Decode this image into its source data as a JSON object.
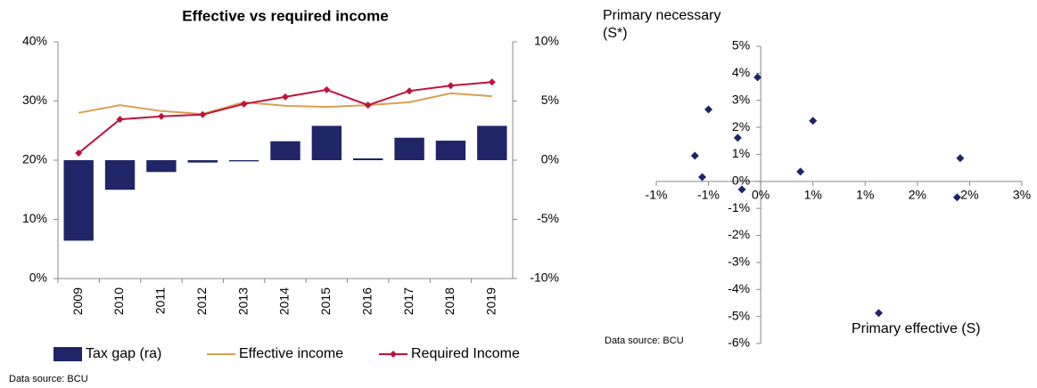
{
  "chart_data": [
    {
      "type": "bar",
      "title": "Effective vs required income",
      "categories": [
        "2009",
        "2010",
        "2011",
        "2012",
        "2013",
        "2014",
        "2015",
        "2016",
        "2017",
        "2018",
        "2019"
      ],
      "series": [
        {
          "name": "Tax gap (ra)",
          "type": "bar",
          "axis": "y2",
          "color": "#1f2566",
          "values": [
            -6.8,
            -2.5,
            -1.0,
            -0.2,
            -0.1,
            1.6,
            2.9,
            0.15,
            1.9,
            1.65,
            2.9
          ]
        },
        {
          "name": "Effective income",
          "type": "line",
          "color": "#d9a050",
          "values": [
            28.0,
            29.3,
            28.3,
            27.8,
            29.8,
            29.2,
            29.0,
            29.3,
            29.8,
            31.3,
            30.8
          ]
        },
        {
          "name": "Required Income",
          "type": "line",
          "marker": "diamond",
          "color": "#c0123c",
          "values": [
            21.2,
            26.9,
            27.4,
            27.7,
            29.5,
            30.7,
            31.9,
            29.3,
            31.7,
            32.6,
            33.2
          ]
        }
      ],
      "ylim": [
        0,
        40
      ],
      "yticks": [
        {
          "value": 0,
          "label": "0%"
        },
        {
          "value": 10,
          "label": "10%"
        },
        {
          "value": 20,
          "label": "20%"
        },
        {
          "value": 30,
          "label": "30%"
        },
        {
          "value": 40,
          "label": "40%"
        }
      ],
      "y2lim": [
        -10,
        10
      ],
      "y2ticks": [
        {
          "value": -10,
          "label": "-10%"
        },
        {
          "value": -5,
          "label": "-5%"
        },
        {
          "value": 0,
          "label": "0%"
        },
        {
          "value": 5,
          "label": "5%"
        },
        {
          "value": 10,
          "label": "10%"
        }
      ],
      "legend": "bottom",
      "grid": false,
      "source": "Data source: BCU"
    },
    {
      "type": "scatter",
      "ylabel": "Primary necessary (S*)",
      "xlabel": "Primary effective (S)",
      "color": "#1f2566",
      "marker": "diamond",
      "x": [
        -0.03,
        -0.5,
        0.5,
        -0.22,
        -0.63,
        -0.56,
        0.38,
        1.91,
        -0.18,
        1.88,
        1.13
      ],
      "y": [
        3.85,
        2.66,
        2.24,
        1.61,
        0.95,
        0.16,
        0.36,
        0.86,
        -0.3,
        -0.59,
        -4.87
      ],
      "xlim": [
        -1,
        2.5
      ],
      "xticks": [
        {
          "value": -1,
          "label": "-1%"
        },
        {
          "value": -0.5,
          "label": "-1%"
        },
        {
          "value": 0,
          "label": "0%"
        },
        {
          "value": 0.5,
          "label": "1%"
        },
        {
          "value": 1,
          "label": "1%"
        },
        {
          "value": 1.5,
          "label": "2%"
        },
        {
          "value": 2,
          "label": "2%"
        },
        {
          "value": 2.5,
          "label": "3%"
        }
      ],
      "ylim": [
        -6,
        5
      ],
      "yticks": [
        {
          "value": -6,
          "label": "-6%"
        },
        {
          "value": -5,
          "label": "-5%"
        },
        {
          "value": -4,
          "label": "-4%"
        },
        {
          "value": -3,
          "label": "-3%"
        },
        {
          "value": -2,
          "label": "-2%"
        },
        {
          "value": -1,
          "label": "-1%"
        },
        {
          "value": 0,
          "label": "0%"
        },
        {
          "value": 1,
          "label": "1%"
        },
        {
          "value": 2,
          "label": "2%"
        },
        {
          "value": 3,
          "label": "3%"
        },
        {
          "value": 4,
          "label": "4%"
        },
        {
          "value": 5,
          "label": "5%"
        }
      ],
      "grid": false,
      "source": "Data source: BCU"
    }
  ]
}
